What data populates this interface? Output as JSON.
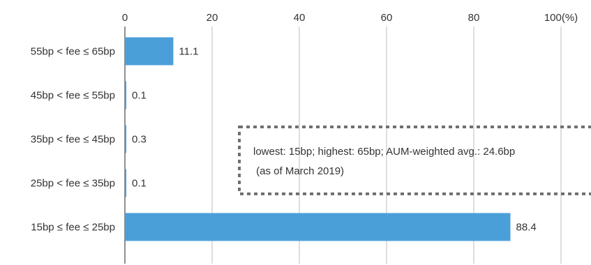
{
  "chart_data": {
    "type": "bar",
    "orientation": "horizontal",
    "categories": [
      "55bp < fee ≤ 65bp",
      "45bp < fee ≤ 55bp",
      "35bp < fee ≤ 45bp",
      "25bp < fee ≤ 35bp",
      "15bp ≤ fee ≤ 25bp"
    ],
    "values": [
      11.1,
      0.1,
      0.3,
      0.1,
      88.4
    ],
    "data_labels": [
      "11.1",
      "0.1",
      "0.3",
      "0.1",
      "88.4"
    ],
    "xlim": [
      0,
      100
    ],
    "x_ticks": [
      0,
      20,
      40,
      60,
      80,
      100
    ],
    "x_tick_labels": [
      "0",
      "20",
      "40",
      "60",
      "80",
      "100(%)"
    ],
    "axis_position": "top",
    "grid": true,
    "bar_color": "#4a9fd8",
    "grid_color": "#c8c8c8",
    "annotation": {
      "lines": [
        "lowest: 15bp; highest: 65bp; AUM-weighted avg.: 24.6bp",
        " (as of March 2019)"
      ],
      "border_color": "#707070",
      "border_style": "dotted"
    }
  }
}
